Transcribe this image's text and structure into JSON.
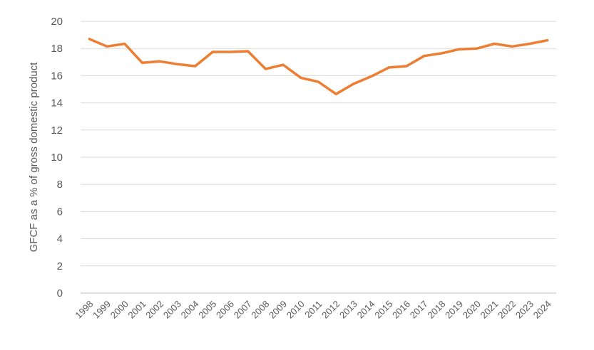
{
  "chart_data": {
    "type": "line",
    "title": "",
    "xlabel": "",
    "ylabel": "GFCF as a % of gross domestic product",
    "ylim": [
      0,
      20
    ],
    "yticks": [
      0,
      2,
      4,
      6,
      8,
      10,
      12,
      14,
      16,
      18,
      20
    ],
    "grid": true,
    "legend": "none",
    "categories": [
      "1998",
      "1999",
      "2000",
      "2001",
      "2002",
      "2003",
      "2004",
      "2005",
      "2006",
      "2007",
      "2008",
      "2009",
      "2010",
      "2011",
      "2012",
      "2013",
      "2014",
      "2015",
      "2016",
      "2017",
      "2018",
      "2019",
      "2020",
      "2021",
      "2022",
      "2023",
      "2024"
    ],
    "series": [
      {
        "color": "#ED7D31",
        "values": [
          18.7,
          18.15,
          18.35,
          16.95,
          17.05,
          16.85,
          16.7,
          17.75,
          17.75,
          17.8,
          16.5,
          16.8,
          15.85,
          15.55,
          14.65,
          15.4,
          15.95,
          16.6,
          16.7,
          17.45,
          17.65,
          17.95,
          18.0,
          18.35,
          18.15,
          18.35,
          18.6
        ]
      }
    ],
    "colors": {
      "grid": "#D9D9D9",
      "axis": "#BFBFBF",
      "text": "#595959"
    }
  }
}
